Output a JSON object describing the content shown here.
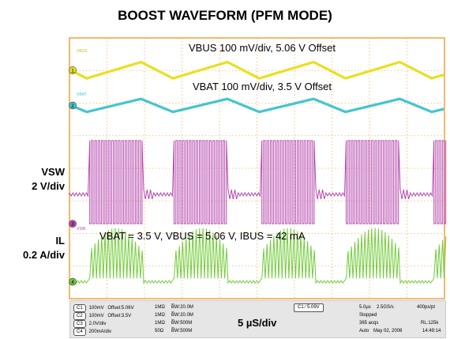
{
  "title": "BOOST WAVEFORM (PFM MODE)",
  "side_labels": {
    "vsw": [
      "VSW",
      "2 V/div"
    ],
    "il": [
      "IL",
      "0.2 A/div"
    ]
  },
  "annotations": {
    "vbus": "VBUS 100 mV/div, 5.06 V Offset",
    "vbat": "VBAT 100 mV/div, 3.5 V Offset",
    "conditions": "VBAT = 3.5 V, VBUS = 5.06 V, IBUS = 42 mA",
    "timebase": "5 µS/div"
  },
  "scope_labels": {
    "vbus": "VBUS",
    "vbat": "VBAT",
    "vsw": "VSW",
    "ch_markers": [
      "1",
      "2",
      "3",
      "4"
    ]
  },
  "channels": [
    {
      "id": "C1",
      "scale": "100mV",
      "offset": "Offset:5.06V",
      "imp": "1MΩ",
      "bw": "B̅W:20.0M"
    },
    {
      "id": "C2",
      "scale": "100mV",
      "offset": "Offset:3.5V",
      "imp": "1MΩ",
      "bw": "B̅W:20.0M"
    },
    {
      "id": "C3",
      "scale": "2.0V/div",
      "offset": "",
      "imp": "1MΩ",
      "bw": "B̅W:500M"
    },
    {
      "id": "C4",
      "scale": "200mA/div",
      "offset": "",
      "imp": "50Ω",
      "bw": "B̅W:500M"
    }
  ],
  "trigger": "C1 ∕ 5.09V",
  "acquisition": {
    "timebase": "5.0µs",
    "sample_rate": "2.5GS/s",
    "pts": "400ps/pt",
    "status": "Stopped",
    "acqs": "365 acqs",
    "rl": "RL:125k",
    "mode": "Auto",
    "date": "May 02, 2008",
    "time": "14:49:14"
  },
  "chart_data": {
    "type": "line",
    "title": "BOOST WAVEFORM (PFM MODE)",
    "xlabel": "5 µS/div",
    "x_divisions": 10,
    "y_divisions": 8,
    "grid": true,
    "colors": {
      "background": "#ffffff",
      "grid": "#f0a23c",
      "vbus": "#e8e020",
      "vbat": "#42c6cc",
      "vsw": "#b648ad",
      "il": "#72cc3a"
    },
    "series": [
      {
        "name": "VBUS",
        "scale": "100 mV/div",
        "offset": "5.06 V",
        "shape": "triangle",
        "period_us": 11.5,
        "amplitude_mV": 25
      },
      {
        "name": "VBAT",
        "scale": "100 mV/div",
        "offset": "3.5 V",
        "shape": "triangle",
        "period_us": 11.5,
        "amplitude_mV": 20
      },
      {
        "name": "VSW",
        "scale": "2 V/div",
        "shape": "pfm-switching",
        "period_us": 11.5,
        "burst_us": 7.3,
        "amplitude_V": 5.1
      },
      {
        "name": "IL",
        "scale": "0.2 A/div",
        "shape": "pfm-current-burst",
        "period_us": 11.5,
        "burst_us": 7.3,
        "peak_A": 0.33
      }
    ]
  }
}
